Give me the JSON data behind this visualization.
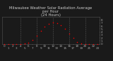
{
  "title": "Milwaukee Weather Solar Radiation Average",
  "subtitle": "per Hour",
  "subtitle2": "(24 Hours)",
  "hours": [
    0,
    1,
    2,
    3,
    4,
    5,
    6,
    7,
    8,
    9,
    10,
    11,
    12,
    13,
    14,
    15,
    16,
    17,
    18,
    19,
    20,
    21,
    22,
    23
  ],
  "solar": [
    0,
    0,
    0,
    0,
    2,
    8,
    50,
    140,
    280,
    430,
    570,
    670,
    720,
    700,
    620,
    500,
    350,
    200,
    65,
    10,
    0,
    0,
    0,
    0
  ],
  "dot_color": "#ff0000",
  "bg_color": "#1a1a1a",
  "plot_bg": "#1a1a1a",
  "grid_color": "#555555",
  "text_color": "#cccccc",
  "tick_color": "#aaaaaa",
  "ylim": [
    0,
    900
  ],
  "xlim": [
    -0.5,
    23.5
  ],
  "yticks": [
    0,
    100,
    200,
    300,
    400,
    500,
    600,
    700,
    800
  ],
  "ytick_labels": [
    "0",
    "1",
    "2",
    "3",
    "4",
    "5",
    "6",
    "7",
    "8"
  ],
  "xtick_vals": [
    0,
    1,
    2,
    3,
    4,
    5,
    6,
    7,
    8,
    9,
    10,
    11,
    12,
    13,
    14,
    15,
    16,
    17,
    18,
    19,
    20,
    21,
    22,
    23
  ],
  "xtick_labels": [
    "0",
    "1",
    "2",
    "3",
    "4",
    "5",
    "6",
    "7",
    "8",
    "9",
    "10",
    "11",
    "12",
    "13",
    "14",
    "15",
    "16",
    "17",
    "18",
    "19",
    "20",
    "21",
    "22",
    "23"
  ],
  "title_fontsize": 3.8,
  "tick_fontsize": 3.0,
  "dot_size": 1.2,
  "grid_linestyle": "--",
  "grid_linewidth": 0.4,
  "vgrid_positions": [
    4,
    8,
    12,
    16,
    20
  ]
}
